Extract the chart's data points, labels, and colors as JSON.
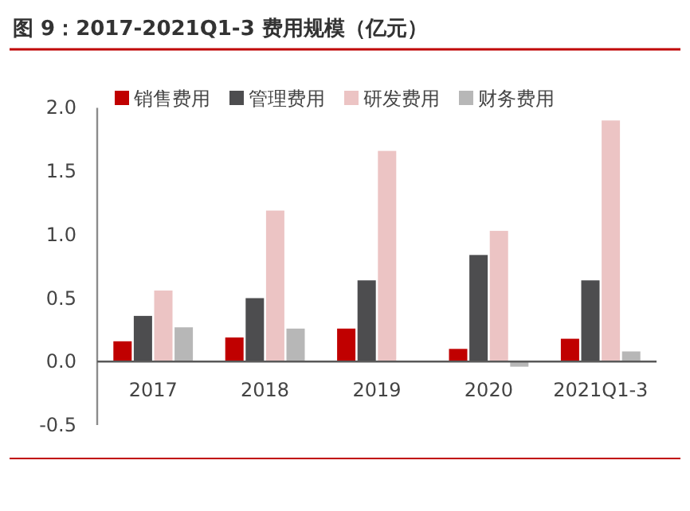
{
  "chart_data": {
    "type": "bar",
    "title": "图 9：2017-2021Q1-3 费用规模（亿元）",
    "categories": [
      "2017",
      "2018",
      "2019",
      "2020",
      "2021Q1-3"
    ],
    "series": [
      {
        "name": "销售费用",
        "color": "#c00000",
        "values": [
          0.16,
          0.19,
          0.26,
          0.1,
          0.18
        ]
      },
      {
        "name": "管理费用",
        "color": "#4d4d4f",
        "values": [
          0.36,
          0.5,
          0.64,
          0.84,
          0.64
        ]
      },
      {
        "name": "研发费用",
        "color": "#ecc4c4",
        "values": [
          0.56,
          1.19,
          1.66,
          1.03,
          1.9
        ]
      },
      {
        "name": "财务费用",
        "color": "#b7b7b7",
        "values": [
          0.27,
          0.26,
          0,
          -0.04,
          0.08
        ]
      }
    ],
    "ylim": [
      -0.5,
      2.0
    ],
    "yticks": [
      {
        "value": -0.5,
        "label": "-0.5"
      },
      {
        "value": 0,
        "label": "0.0"
      },
      {
        "value": 0.5,
        "label": "0.5"
      },
      {
        "value": 1,
        "label": "1.0"
      },
      {
        "value": 1.5,
        "label": "1.5"
      },
      {
        "value": 2,
        "label": "2.0"
      }
    ],
    "legend": "top",
    "grid": false
  }
}
